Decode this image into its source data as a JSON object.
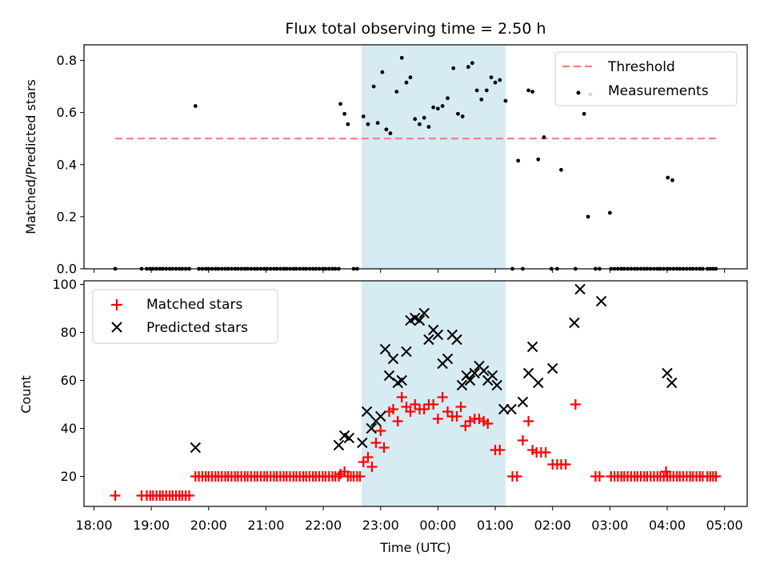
{
  "figure": {
    "title": "Flux total observing time = 2.50 h"
  },
  "colors": {
    "threshold": "#f08080",
    "highlight": "#add8e6",
    "measurement": "#000000",
    "matched": "#ff0000",
    "predicted": "#000000"
  },
  "chart_data": [
    {
      "type": "scatter",
      "ylabel": "Matched/Predicted stars",
      "xlim": [
        -0.2,
        11.4
      ],
      "ylim": [
        0,
        0.86
      ],
      "yticks": [
        0.0,
        0.2,
        0.4,
        0.6,
        0.8
      ],
      "ytick_labels": [
        "0.0",
        "0.2",
        "0.4",
        "0.6",
        "0.8"
      ],
      "highlight_span": [
        4.67,
        7.18
      ],
      "legend": {
        "position": "upper-right",
        "entries": [
          "Threshold",
          "Measurements"
        ]
      },
      "threshold": {
        "name": "Threshold",
        "value": 0.5,
        "x": [
          0.37,
          10.87
        ]
      },
      "measurements_name": "Measurements",
      "measurements_zero_x": [
        0.37,
        0.83,
        0.92,
        0.98,
        1.03,
        1.09,
        1.15,
        1.2,
        1.26,
        1.32,
        1.37,
        1.43,
        1.49,
        1.54,
        1.6,
        1.66,
        1.83,
        1.89,
        1.95,
        2.0,
        2.06,
        2.12,
        2.17,
        2.23,
        2.29,
        2.34,
        2.4,
        2.46,
        2.51,
        2.57,
        2.63,
        2.68,
        2.74,
        2.8,
        2.85,
        2.91,
        2.97,
        3.02,
        3.08,
        3.14,
        3.19,
        3.25,
        3.31,
        3.36,
        3.42,
        3.48,
        3.53,
        3.59,
        3.65,
        3.7,
        3.76,
        3.82,
        3.87,
        3.93,
        3.99,
        4.04,
        4.1,
        4.16,
        4.21,
        4.27,
        4.53,
        4.59,
        7.3,
        7.48,
        7.98,
        8.08,
        8.4,
        8.75,
        8.82,
        9.02,
        9.08,
        9.14,
        9.2,
        9.25,
        9.31,
        9.37,
        9.43,
        9.48,
        9.54,
        9.6,
        9.65,
        9.71,
        9.77,
        9.83,
        9.88,
        9.94,
        10.0,
        10.05,
        10.11,
        10.17,
        10.22,
        10.28,
        10.34,
        10.4,
        10.45,
        10.51,
        10.57,
        10.62,
        10.7,
        10.75,
        10.8,
        10.85
      ],
      "measurements": [
        [
          1.77,
          0.625
        ],
        [
          4.3,
          0.633
        ],
        [
          4.37,
          0.595
        ],
        [
          4.43,
          0.555
        ],
        [
          4.7,
          0.585
        ],
        [
          4.78,
          0.555
        ],
        [
          4.88,
          0.7
        ],
        [
          4.95,
          0.56
        ],
        [
          5.03,
          0.755
        ],
        [
          5.1,
          0.535
        ],
        [
          5.17,
          0.52
        ],
        [
          5.28,
          0.68
        ],
        [
          5.37,
          0.81
        ],
        [
          5.45,
          0.715
        ],
        [
          5.52,
          0.735
        ],
        [
          5.6,
          0.575
        ],
        [
          5.68,
          0.555
        ],
        [
          5.76,
          0.58
        ],
        [
          5.84,
          0.545
        ],
        [
          5.92,
          0.62
        ],
        [
          6.0,
          0.615
        ],
        [
          6.08,
          0.625
        ],
        [
          6.17,
          0.655
        ],
        [
          6.27,
          0.77
        ],
        [
          6.35,
          0.595
        ],
        [
          6.43,
          0.585
        ],
        [
          6.53,
          0.775
        ],
        [
          6.6,
          0.79
        ],
        [
          6.68,
          0.685
        ],
        [
          6.76,
          0.65
        ],
        [
          6.85,
          0.685
        ],
        [
          6.93,
          0.735
        ],
        [
          7.0,
          0.715
        ],
        [
          7.08,
          0.725
        ],
        [
          7.18,
          0.645
        ],
        [
          7.4,
          0.415
        ],
        [
          7.58,
          0.685
        ],
        [
          7.65,
          0.68
        ],
        [
          7.75,
          0.42
        ],
        [
          7.85,
          0.505
        ],
        [
          8.15,
          0.38
        ],
        [
          8.55,
          0.595
        ],
        [
          8.62,
          0.2
        ],
        [
          8.66,
          0.67
        ],
        [
          9.0,
          0.215
        ],
        [
          10.01,
          0.35
        ],
        [
          10.09,
          0.34
        ]
      ]
    },
    {
      "type": "scatter",
      "xlabel": "Time (UTC)",
      "ylabel": "Count",
      "xlim": [
        -0.2,
        11.4
      ],
      "ylim": [
        7.5,
        101.5
      ],
      "yticks": [
        20,
        40,
        60,
        80,
        100
      ],
      "ytick_labels": [
        "20",
        "40",
        "60",
        "80",
        "100"
      ],
      "xticks": [
        0,
        1,
        2,
        3,
        4,
        5,
        6,
        7,
        8,
        9,
        10,
        11
      ],
      "xtick_labels": [
        "18:00",
        "19:00",
        "20:00",
        "21:00",
        "22:00",
        "23:00",
        "00:00",
        "01:00",
        "02:00",
        "03:00",
        "04:00",
        "05:00"
      ],
      "highlight_span": [
        4.67,
        7.18
      ],
      "legend": {
        "position": "upper-left",
        "entries": [
          "Matched stars",
          "Predicted stars"
        ]
      },
      "series": [
        {
          "name": "Matched stars",
          "marker": "plus",
          "low_value": 12,
          "low_x": [
            0.37,
            0.83,
            0.92,
            0.98,
            1.03,
            1.09,
            1.15,
            1.2,
            1.26,
            1.32,
            1.37,
            1.43,
            1.49,
            1.54,
            1.6,
            1.66
          ],
          "base_value": 20,
          "base_x": [
            1.77,
            1.83,
            1.89,
            1.95,
            2.0,
            2.06,
            2.12,
            2.17,
            2.23,
            2.29,
            2.34,
            2.4,
            2.46,
            2.51,
            2.57,
            2.63,
            2.68,
            2.74,
            2.8,
            2.85,
            2.91,
            2.97,
            3.02,
            3.08,
            3.14,
            3.19,
            3.25,
            3.31,
            3.36,
            3.42,
            3.48,
            3.53,
            3.59,
            3.65,
            3.7,
            3.76,
            3.82,
            3.87,
            3.93,
            3.99,
            4.04,
            4.1,
            4.16,
            4.21,
            4.27,
            4.43,
            4.48,
            4.53,
            4.59,
            4.64,
            8.75,
            8.82,
            9.02,
            9.08,
            9.14,
            9.2,
            9.25,
            9.31,
            9.37,
            9.43,
            9.48,
            9.54,
            9.6,
            9.65,
            9.71,
            9.77,
            9.83,
            9.88,
            9.94,
            10.0,
            10.05,
            10.11,
            10.17,
            10.22,
            10.28,
            10.34,
            10.4,
            10.45,
            10.51,
            10.57,
            10.62,
            10.7,
            10.75,
            10.8,
            10.85
          ],
          "points": [
            [
              4.3,
              21
            ],
            [
              4.37,
              22
            ],
            [
              4.7,
              26
            ],
            [
              4.78,
              28
            ],
            [
              4.85,
              24
            ],
            [
              4.92,
              34
            ],
            [
              5.0,
              39
            ],
            [
              5.06,
              32
            ],
            [
              5.15,
              47
            ],
            [
              5.22,
              48
            ],
            [
              5.3,
              43
            ],
            [
              5.37,
              53
            ],
            [
              5.45,
              49
            ],
            [
              5.52,
              47
            ],
            [
              5.6,
              50
            ],
            [
              5.68,
              48
            ],
            [
              5.76,
              48
            ],
            [
              5.84,
              50
            ],
            [
              5.92,
              50
            ],
            [
              6.0,
              44
            ],
            [
              6.08,
              53
            ],
            [
              6.17,
              47
            ],
            [
              6.25,
              45
            ],
            [
              6.33,
              45
            ],
            [
              6.4,
              49
            ],
            [
              6.48,
              41
            ],
            [
              6.56,
              43
            ],
            [
              6.64,
              44
            ],
            [
              6.72,
              44
            ],
            [
              6.8,
              43
            ],
            [
              6.87,
              42
            ],
            [
              7.0,
              31
            ],
            [
              7.08,
              31
            ],
            [
              7.3,
              20
            ],
            [
              7.38,
              20
            ],
            [
              7.48,
              35
            ],
            [
              7.58,
              43
            ],
            [
              7.65,
              31
            ],
            [
              7.72,
              30
            ],
            [
              7.8,
              30
            ],
            [
              7.88,
              30
            ],
            [
              8.0,
              25
            ],
            [
              8.08,
              25
            ],
            [
              8.15,
              25
            ],
            [
              8.23,
              25
            ],
            [
              8.4,
              50
            ],
            [
              9.98,
              22
            ]
          ]
        },
        {
          "name": "Predicted stars",
          "marker": "x",
          "points": [
            [
              1.77,
              32
            ],
            [
              4.27,
              33
            ],
            [
              4.37,
              37
            ],
            [
              4.45,
              36
            ],
            [
              4.68,
              34
            ],
            [
              4.76,
              47
            ],
            [
              4.84,
              40
            ],
            [
              4.92,
              43
            ],
            [
              5.0,
              45
            ],
            [
              5.08,
              73
            ],
            [
              5.15,
              62
            ],
            [
              5.22,
              69
            ],
            [
              5.3,
              59
            ],
            [
              5.37,
              60
            ],
            [
              5.45,
              72
            ],
            [
              5.52,
              85
            ],
            [
              5.6,
              86
            ],
            [
              5.68,
              85
            ],
            [
              5.76,
              88
            ],
            [
              5.84,
              77
            ],
            [
              5.92,
              81
            ],
            [
              6.0,
              79
            ],
            [
              6.08,
              67
            ],
            [
              6.17,
              69
            ],
            [
              6.25,
              79
            ],
            [
              6.33,
              77
            ],
            [
              6.42,
              58
            ],
            [
              6.5,
              62
            ],
            [
              6.56,
              60
            ],
            [
              6.64,
              63
            ],
            [
              6.72,
              66
            ],
            [
              6.8,
              64
            ],
            [
              6.87,
              60
            ],
            [
              6.95,
              62
            ],
            [
              7.03,
              58
            ],
            [
              7.15,
              48
            ],
            [
              7.28,
              48
            ],
            [
              7.48,
              51
            ],
            [
              7.58,
              63
            ],
            [
              7.65,
              74
            ],
            [
              7.75,
              59
            ],
            [
              8.0,
              65
            ],
            [
              8.38,
              84
            ],
            [
              8.48,
              98
            ],
            [
              8.85,
              93
            ],
            [
              10.0,
              63
            ],
            [
              10.08,
              59
            ]
          ]
        }
      ]
    }
  ]
}
